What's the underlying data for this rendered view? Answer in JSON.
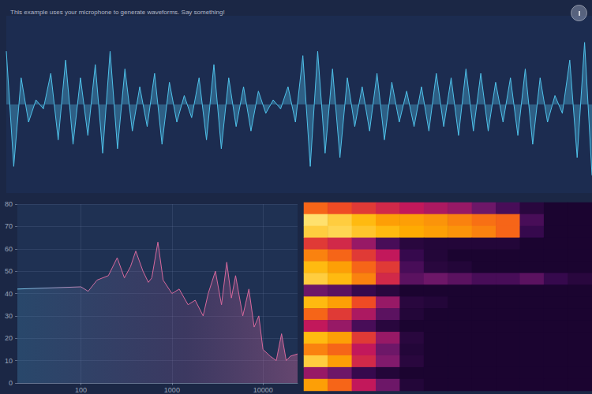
{
  "chart_data": [
    {
      "type": "line",
      "title": "This example uses your microphone to generate waveforms. Say something!",
      "x": [
        0,
        1,
        2,
        3,
        4,
        5,
        6,
        7,
        8,
        9,
        10,
        11,
        12,
        13,
        14,
        15,
        16,
        17,
        18,
        19,
        20,
        21,
        22,
        23,
        24,
        25,
        26,
        27,
        28,
        29,
        30,
        31,
        32,
        33,
        34,
        35,
        36,
        37,
        38,
        39,
        40,
        41,
        42,
        43,
        44,
        45,
        46,
        47,
        48,
        49,
        50,
        51,
        52,
        53,
        54,
        55,
        56,
        57,
        58,
        59,
        60,
        61,
        62,
        63,
        64,
        65,
        66,
        67,
        68,
        69,
        70,
        71,
        72,
        73,
        74,
        75,
        76,
        77,
        78,
        79
      ],
      "values": [
        0.6,
        -0.7,
        0.3,
        -0.2,
        0.05,
        -0.05,
        0.35,
        -0.4,
        0.5,
        -0.45,
        0.3,
        -0.35,
        0.45,
        -0.55,
        0.6,
        -0.5,
        0.4,
        -0.3,
        0.2,
        -0.25,
        0.35,
        -0.45,
        0.25,
        -0.2,
        0.1,
        -0.15,
        0.3,
        -0.4,
        0.45,
        -0.5,
        0.3,
        -0.25,
        0.2,
        -0.3,
        0.15,
        -0.1,
        0.05,
        -0.05,
        0.2,
        -0.2,
        0.55,
        -0.7,
        0.6,
        -0.55,
        0.4,
        -0.6,
        0.3,
        -0.25,
        0.2,
        -0.3,
        0.35,
        -0.4,
        0.25,
        -0.2,
        0.15,
        -0.25,
        0.2,
        -0.3,
        0.35,
        -0.25,
        0.3,
        -0.35,
        0.4,
        -0.3,
        0.35,
        -0.3,
        0.25,
        -0.2,
        0.3,
        -0.35,
        0.4,
        -0.45,
        0.3,
        -0.2,
        0.1,
        -0.1,
        0.5,
        -0.6,
        0.7,
        -0.8
      ],
      "xlim": [
        0,
        79
      ],
      "ylim": [
        -1,
        1
      ],
      "color": "#4fc1e9",
      "tick_labels": false,
      "grid": false
    },
    {
      "type": "line",
      "log": "x",
      "x": [
        20,
        100,
        120,
        150,
        200,
        250,
        300,
        350,
        400,
        480,
        550,
        600,
        700,
        800,
        1000,
        1200,
        1500,
        1800,
        2200,
        2500,
        3000,
        3500,
        4000,
        4500,
        5000,
        6000,
        7000,
        8000,
        9000,
        10000,
        12000,
        14000,
        16000,
        18000,
        20000,
        24000
      ],
      "values": [
        42,
        43,
        41,
        46,
        48,
        56,
        47,
        52,
        59,
        50,
        45,
        47,
        63,
        46,
        40,
        42,
        35,
        37,
        30,
        40,
        50,
        35,
        54,
        38,
        48,
        30,
        42,
        25,
        30,
        15,
        12,
        10,
        22,
        10,
        12,
        13
      ],
      "xlim": [
        20,
        24000
      ],
      "ylim": [
        0,
        80
      ],
      "xticks": [
        100,
        1000,
        10000
      ],
      "yticks": [
        0,
        10,
        20,
        30,
        40,
        50,
        60,
        70,
        80
      ],
      "color": "#d6689c",
      "grid": true
    },
    {
      "type": "heatmap",
      "tick_labels": false,
      "value_range": [
        0,
        100
      ],
      "cells": [
        [
          70,
          65,
          60,
          55,
          50,
          45,
          40,
          30,
          20,
          10,
          5,
          5
        ],
        [
          95,
          90,
          85,
          80,
          80,
          78,
          75,
          72,
          70,
          20,
          5,
          5
        ],
        [
          90,
          92,
          88,
          85,
          82,
          80,
          78,
          75,
          70,
          15,
          5,
          5
        ],
        [
          60,
          55,
          40,
          20,
          10,
          8,
          8,
          8,
          8,
          5,
          5,
          5
        ],
        [
          75,
          70,
          60,
          50,
          15,
          8,
          5,
          5,
          5,
          5,
          5,
          5
        ],
        [
          85,
          80,
          70,
          60,
          20,
          10,
          8,
          5,
          5,
          5,
          5,
          5
        ],
        [
          90,
          85,
          75,
          55,
          25,
          30,
          25,
          20,
          20,
          25,
          15,
          10
        ],
        [
          30,
          25,
          15,
          10,
          5,
          5,
          5,
          5,
          5,
          5,
          5,
          5
        ],
        [
          85,
          80,
          65,
          40,
          10,
          8,
          5,
          5,
          5,
          5,
          5,
          5
        ],
        [
          70,
          60,
          45,
          25,
          8,
          5,
          5,
          5,
          5,
          5,
          5,
          5
        ],
        [
          50,
          40,
          20,
          10,
          5,
          5,
          5,
          5,
          5,
          5,
          5,
          5
        ],
        [
          85,
          80,
          60,
          40,
          10,
          5,
          5,
          5,
          5,
          5,
          5,
          5
        ],
        [
          75,
          70,
          50,
          30,
          8,
          5,
          5,
          5,
          5,
          5,
          5,
          5
        ],
        [
          90,
          80,
          55,
          35,
          10,
          5,
          5,
          5,
          5,
          5,
          5,
          5
        ],
        [
          40,
          30,
          15,
          8,
          5,
          5,
          5,
          5,
          5,
          5,
          5,
          5
        ],
        [
          80,
          70,
          50,
          30,
          8,
          5,
          5,
          5,
          5,
          5,
          5,
          5
        ]
      ]
    }
  ]
}
